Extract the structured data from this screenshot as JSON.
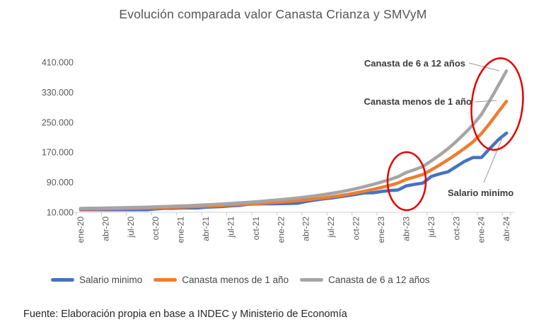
{
  "title": "Evolución comparada valor Canasta Crianza y SMVyM",
  "source_note": "Fuente: Elaboración propia en base a INDEC y Ministerio de Economía",
  "colors": {
    "salario_minimo": "#4472C4",
    "canasta_menos_1": "#ED7D31",
    "canasta_6_12": "#A5A5A5",
    "annotation_red": "#E60000",
    "leader_line": "#9a9a9a",
    "axis_text": "#595959"
  },
  "annotations": {
    "canasta_6_12": "Canasta de 6 a 12 años",
    "canasta_menos_1": "Canasta menos de 1 año",
    "salario_minimo": "Salario minimo"
  },
  "chart_data": {
    "type": "line",
    "title": "Evolución comparada valor Canasta Crianza y SMVyM",
    "xlabel": "",
    "ylabel": "",
    "grid": false,
    "legend_position": "bottom",
    "ylim": [
      10000,
      410000
    ],
    "y_ticks": [
      10000,
      90000,
      170000,
      250000,
      330000,
      410000
    ],
    "y_tick_labels": [
      "10.000",
      "90.000",
      "170.000",
      "250.000",
      "330.000",
      "410.000"
    ],
    "x_tick_labels": [
      "ene-20",
      "abr-20",
      "jul-20",
      "oct-20",
      "ene-21",
      "abr-21",
      "jul-21",
      "oct-21",
      "ene-22",
      "abr-22",
      "jul-22",
      "oct-22",
      "ene-23",
      "abr-23",
      "jul-23",
      "oct-23",
      "ene-24",
      "abr-24"
    ],
    "x": [
      "ene-20",
      "feb-20",
      "mar-20",
      "abr-20",
      "may-20",
      "jun-20",
      "jul-20",
      "ago-20",
      "sep-20",
      "oct-20",
      "nov-20",
      "dic-20",
      "ene-21",
      "feb-21",
      "mar-21",
      "abr-21",
      "may-21",
      "jun-21",
      "jul-21",
      "ago-21",
      "sep-21",
      "oct-21",
      "nov-21",
      "dic-21",
      "ene-22",
      "feb-22",
      "mar-22",
      "abr-22",
      "may-22",
      "jun-22",
      "jul-22",
      "ago-22",
      "sep-22",
      "oct-22",
      "nov-22",
      "dic-22",
      "ene-23",
      "feb-23",
      "mar-23",
      "abr-23",
      "may-23",
      "jun-23",
      "jul-23",
      "ago-23",
      "sep-23",
      "oct-23",
      "nov-23",
      "dic-23",
      "ene-24",
      "feb-24",
      "mar-24",
      "abr-24"
    ],
    "series": [
      {
        "name": "Salario minimo",
        "color": "#4472C4",
        "values": [
          16875,
          16875,
          16875,
          16875,
          16875,
          16875,
          16875,
          16875,
          16875,
          18900,
          20588,
          20588,
          21600,
          21600,
          21600,
          23544,
          24408,
          25272,
          27216,
          28080,
          31104,
          32000,
          32616,
          32616,
          33000,
          33550,
          34000,
          38940,
          42240,
          45540,
          47850,
          51200,
          54550,
          57900,
          61953,
          61953,
          65427,
          67743,
          69500,
          80342,
          84512,
          87987,
          105500,
          112500,
          118000,
          132000,
          146000,
          156000,
          156000,
          180000,
          202800,
          221052
        ]
      },
      {
        "name": "Canasta menos de 1 año",
        "color": "#ED7D31",
        "values": [
          18600,
          18800,
          19100,
          19400,
          19700,
          20000,
          20400,
          20800,
          21300,
          21900,
          22500,
          23100,
          23800,
          24500,
          25300,
          26200,
          27100,
          28100,
          29200,
          30400,
          31700,
          33100,
          34600,
          36200,
          37500,
          39200,
          41000,
          43200,
          45600,
          48200,
          51000,
          54200,
          57800,
          61800,
          66200,
          71000,
          76000,
          81500,
          88000,
          98000,
          104000,
          111000,
          123000,
          136000,
          150000,
          165000,
          181000,
          198000,
          220000,
          247000,
          277000,
          306000
        ]
      },
      {
        "name": "Canasta de 6 a 12 años",
        "color": "#A5A5A5",
        "values": [
          20400,
          20700,
          21000,
          21400,
          21800,
          22200,
          22700,
          23200,
          23800,
          24500,
          25300,
          26100,
          26900,
          27800,
          28800,
          29900,
          31000,
          32200,
          33500,
          34900,
          36400,
          38100,
          39900,
          41800,
          43800,
          45900,
          48100,
          50700,
          53600,
          56800,
          60200,
          64000,
          68300,
          73100,
          78400,
          84200,
          90500,
          97000,
          105000,
          116000,
          123500,
          132000,
          147000,
          162500,
          179500,
          199000,
          220500,
          243500,
          271000,
          308000,
          347000,
          387000
        ]
      }
    ]
  }
}
